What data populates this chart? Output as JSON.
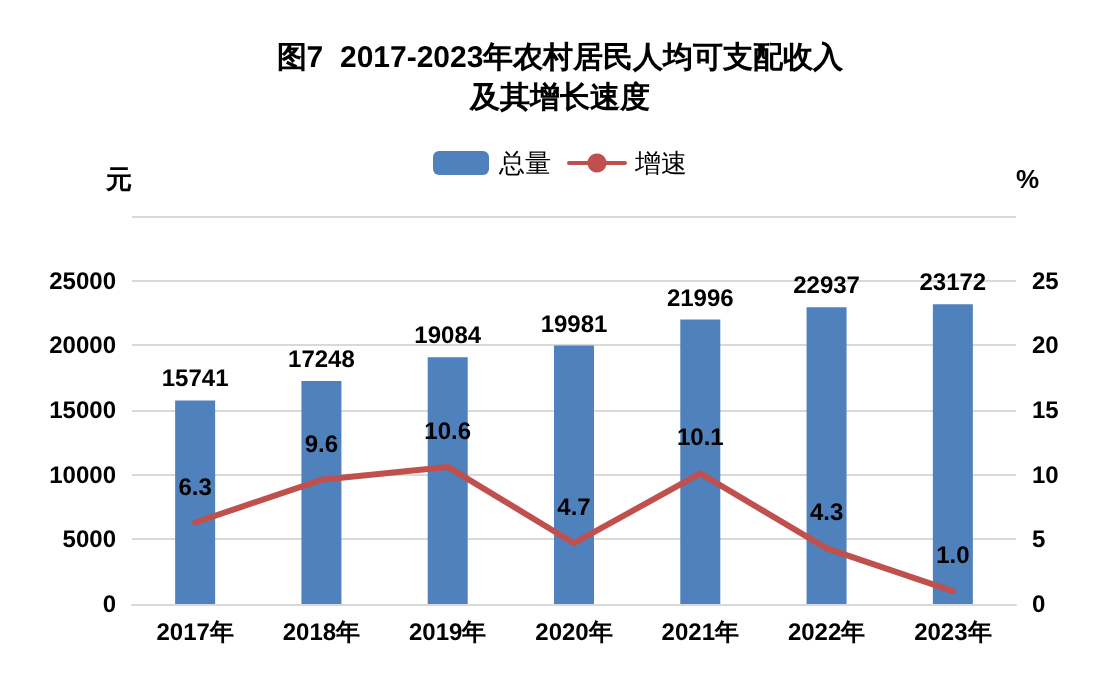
{
  "chart_data": {
    "type": "bar",
    "title": "图7  2017-2023年农村居民人均可支配收入及其增长速度",
    "ylabel": "元",
    "y2label": "%",
    "categories": [
      "2017年",
      "2018年",
      "2019年",
      "2020年",
      "2021年",
      "2022年",
      "2023年"
    ],
    "series": [
      {
        "name": "总量",
        "color": "#4f81bd",
        "values": [
          15741,
          17248,
          19084,
          19981,
          21996,
          22937,
          23172
        ],
        "value_labels": [
          "15741",
          "17248",
          "19084",
          "19981",
          "21996",
          "22937",
          "23172"
        ]
      },
      {
        "name": "增速",
        "type": "line",
        "axis": "y2",
        "color": "#c0504d",
        "values": [
          6.3,
          9.6,
          10.6,
          4.7,
          10.1,
          4.3,
          1.0
        ],
        "value_labels": [
          "6.3",
          "9.6",
          "10.6",
          "4.7",
          "10.1",
          "4.3",
          "1.0"
        ]
      }
    ],
    "ylim": [
      0,
      30000
    ],
    "yticks": [
      0,
      5000,
      10000,
      15000,
      20000,
      25000,
      {
        "value": 30000,
        "label": null
      }
    ],
    "y2lim": [
      0,
      30
    ],
    "y2ticks": [
      0,
      5,
      10,
      15,
      20,
      25
    ],
    "grid": "y",
    "legend": "top",
    "marker": "none",
    "line_style": "solid"
  }
}
